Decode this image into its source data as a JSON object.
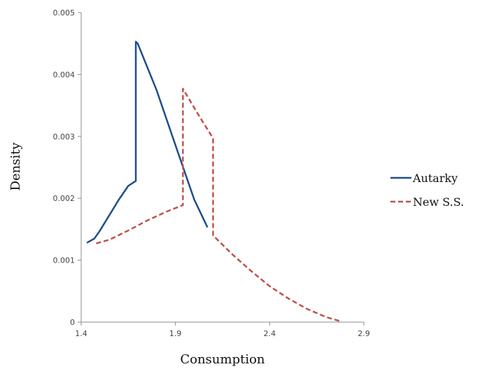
{
  "chart_data": {
    "type": "line",
    "title": "",
    "xlabel": "Consumption",
    "ylabel": "Density",
    "xlim": [
      1.4,
      2.9
    ],
    "ylim": [
      0,
      0.005
    ],
    "x_ticks": [
      "1.4",
      "1.9",
      "2.4",
      "2.9"
    ],
    "y_ticks": [
      "0",
      "0.001",
      "0.002",
      "0.003",
      "0.004",
      "0.005"
    ],
    "grid": false,
    "legend_position": "right",
    "series": [
      {
        "name": "Autarky",
        "color": "#1f4e8c",
        "style": "solid",
        "points": [
          [
            1.43,
            0.00128
          ],
          [
            1.47,
            0.00135
          ],
          [
            1.5,
            0.00148
          ],
          [
            1.55,
            0.00173
          ],
          [
            1.6,
            0.00198
          ],
          [
            1.65,
            0.0022
          ],
          [
            1.69,
            0.00228
          ],
          [
            1.69,
            0.00453
          ],
          [
            1.7,
            0.0045
          ],
          [
            1.8,
            0.00375
          ],
          [
            1.9,
            0.00286
          ],
          [
            2.0,
            0.00198
          ],
          [
            2.07,
            0.00153
          ]
        ]
      },
      {
        "name": "New S.S.",
        "color": "#c0504d",
        "style": "dashed",
        "points": [
          [
            1.48,
            0.00127
          ],
          [
            1.55,
            0.00133
          ],
          [
            1.65,
            0.00148
          ],
          [
            1.75,
            0.00164
          ],
          [
            1.85,
            0.00178
          ],
          [
            1.94,
            0.00189
          ],
          [
            1.94,
            0.00377
          ],
          [
            2.02,
            0.00336
          ],
          [
            2.1,
            0.00297
          ],
          [
            2.1,
            0.0014
          ],
          [
            2.2,
            0.0011
          ],
          [
            2.3,
            0.00083
          ],
          [
            2.4,
            0.00058
          ],
          [
            2.5,
            0.00038
          ],
          [
            2.6,
            0.00021
          ],
          [
            2.7,
            8e-05
          ],
          [
            2.78,
            1e-05
          ]
        ]
      }
    ]
  }
}
